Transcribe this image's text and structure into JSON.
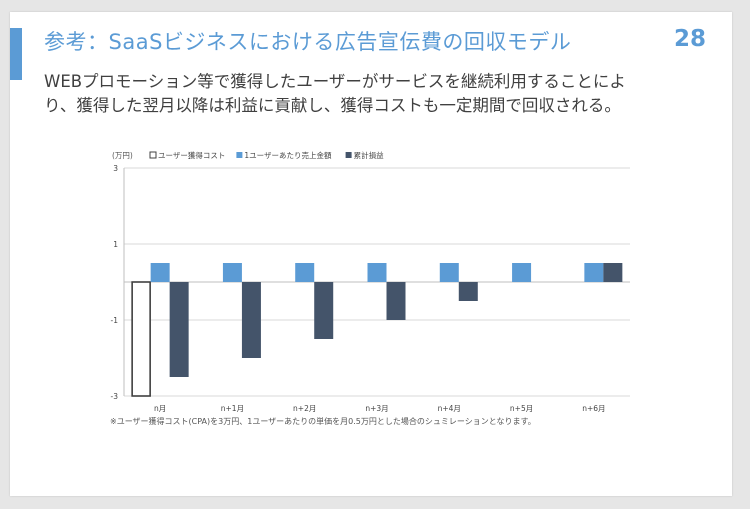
{
  "slide": {
    "title": "参考：SaaSビジネスにおける広告宣伝費の回収モデル",
    "page_number": "28",
    "description": "WEBプロモーション等で獲得したユーザーがサービスを継続利用することによ\nり、獲得した翌月以降は利益に貢献し、獲得コストも一定期間で回収される。",
    "footnote": "※ユーザー獲得コスト(CPA)を3万円、1ユーザーあたりの単価を月0.5万円とした場合のシュミレーションとなります。"
  },
  "colors": {
    "accent": "#5b9bd5",
    "revenue": "#5b9bd5",
    "cumulative": "#44546a",
    "cost_border": "#404040",
    "grid": "#d9d9d9"
  },
  "chart_data": {
    "type": "bar",
    "unit_label": "(万円)",
    "categories": [
      "n月",
      "n+1月",
      "n+2月",
      "n+3月",
      "n+4月",
      "n+5月",
      "n+6月"
    ],
    "yticks": [
      3,
      1,
      -1,
      -3
    ],
    "ylim": [
      -3,
      3
    ],
    "grid": true,
    "legend_position": "top-left",
    "series": [
      {
        "name": "ユーザー獲得コスト",
        "values": [
          -3,
          null,
          null,
          null,
          null,
          null,
          null
        ]
      },
      {
        "name": "1ユーザーあたり売上金額",
        "values": [
          0.5,
          0.5,
          0.5,
          0.5,
          0.5,
          0.5,
          0.5
        ]
      },
      {
        "name": "累計損益",
        "values": [
          -2.5,
          -2.0,
          -1.5,
          -1.0,
          -0.5,
          0,
          0.5
        ]
      }
    ]
  }
}
